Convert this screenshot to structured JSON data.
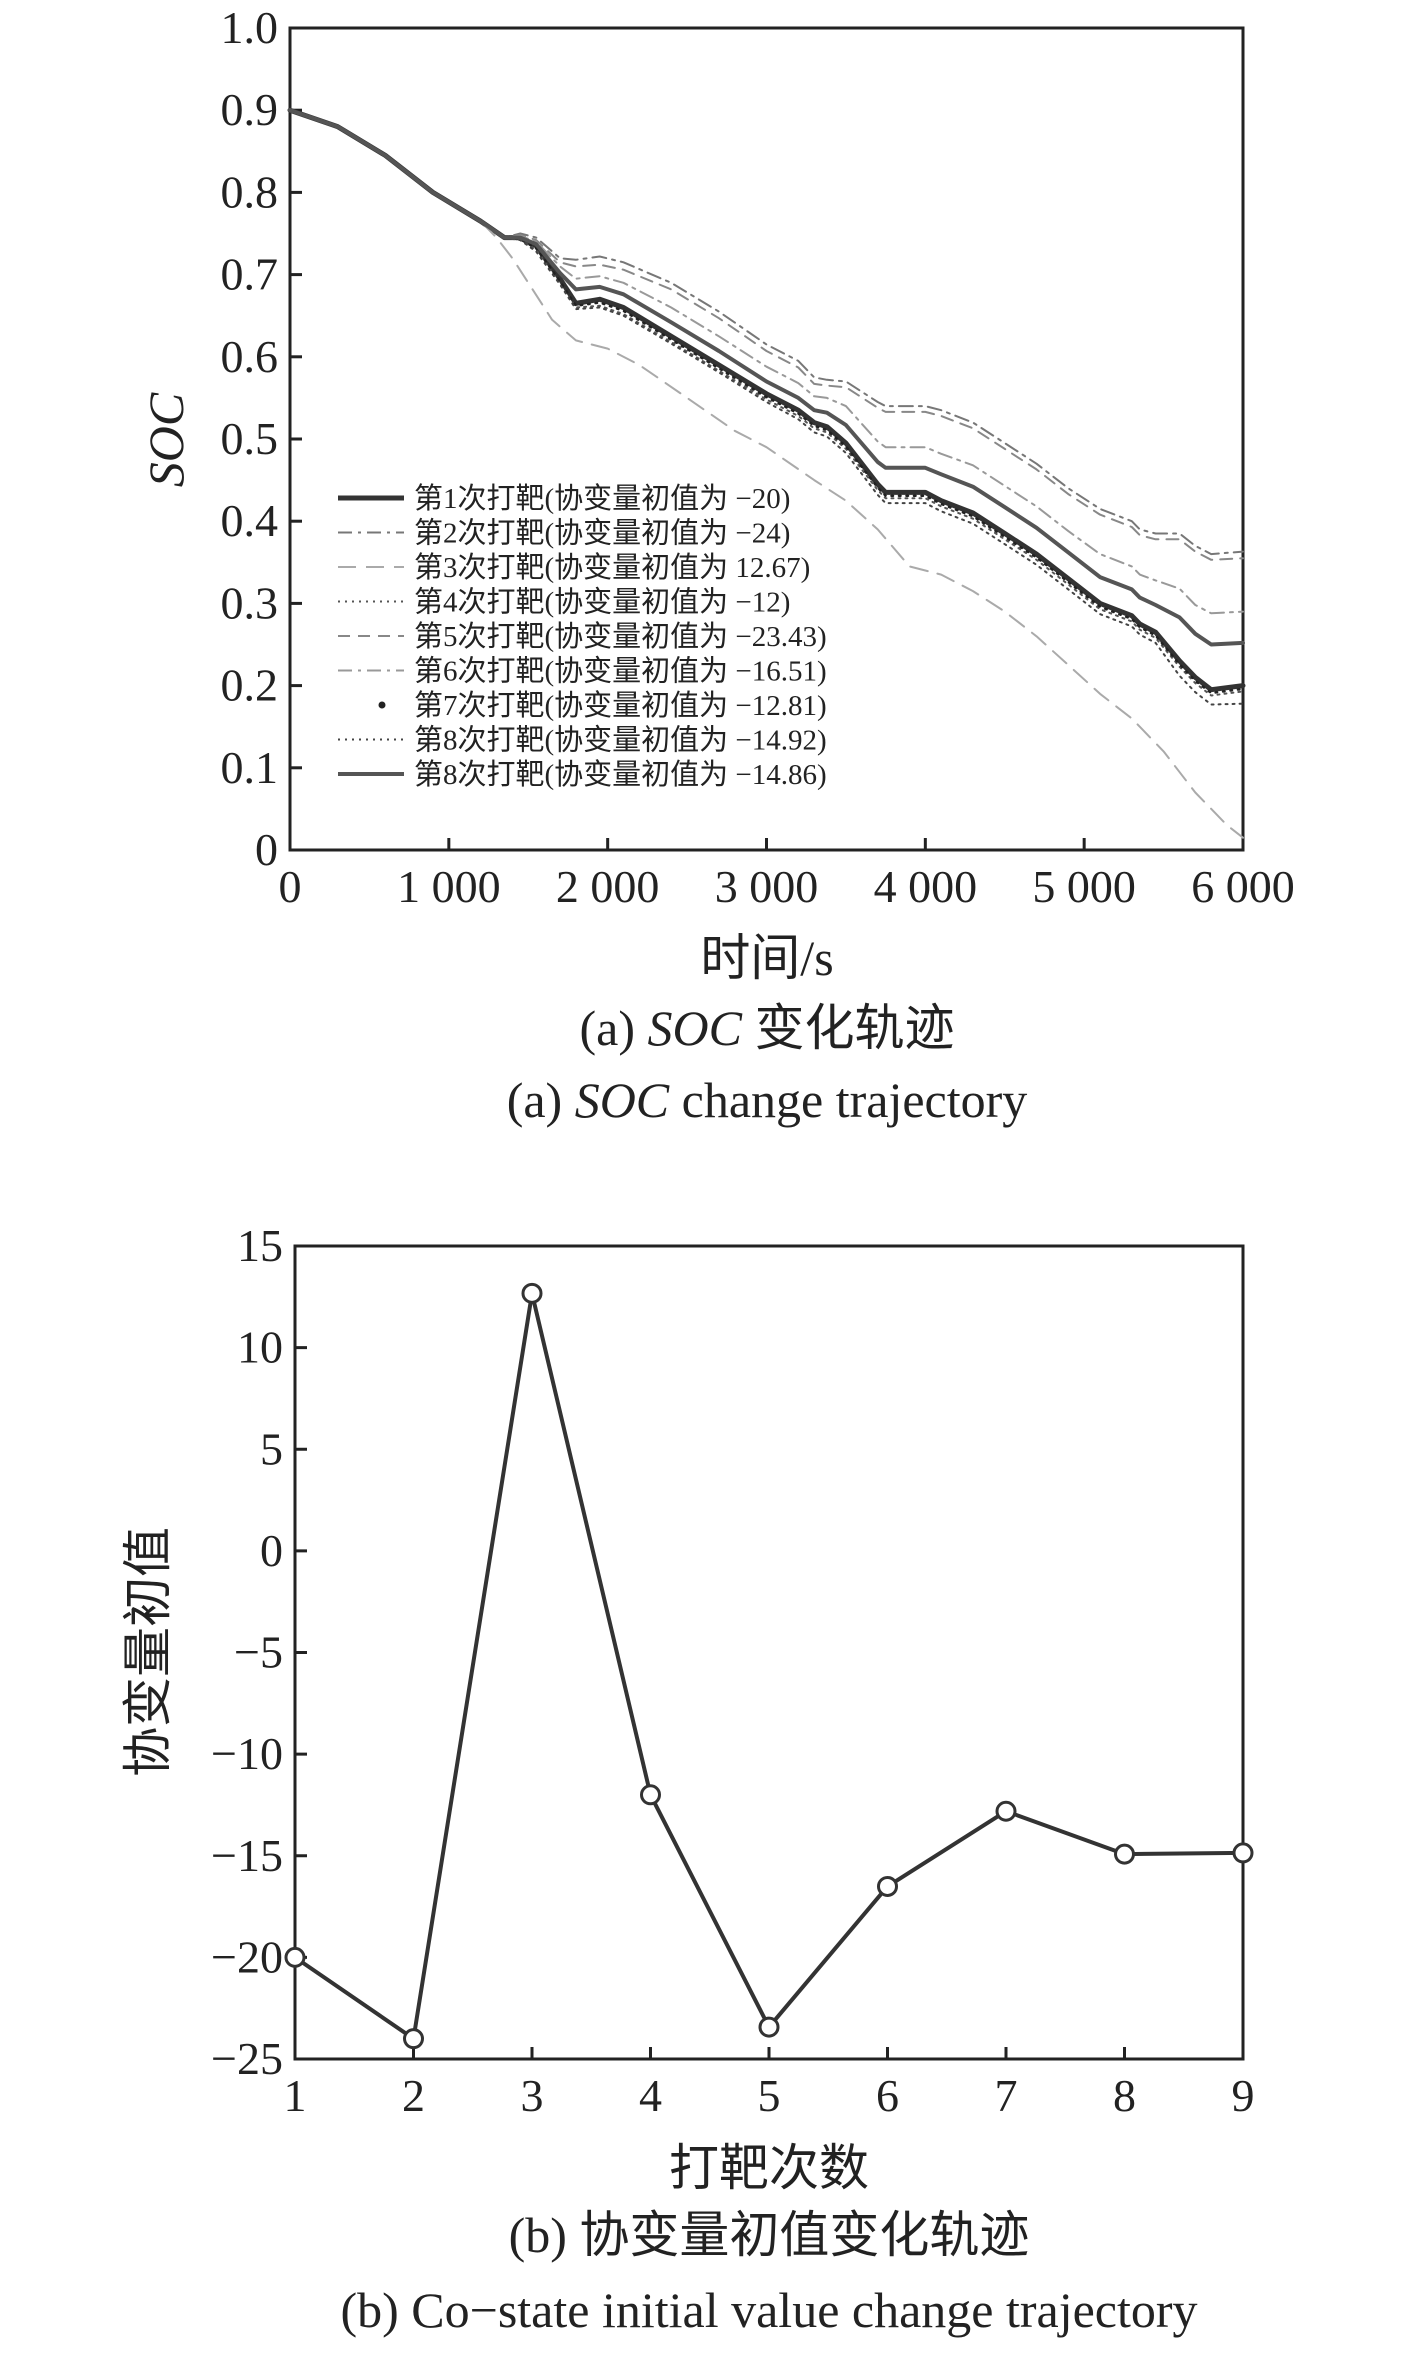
{
  "chart_data": [
    {
      "type": "line",
      "title": "",
      "xlabel": "时间/s",
      "ylabel": "SOC",
      "xlim": [
        0,
        6000
      ],
      "ylim": [
        0,
        1.0
      ],
      "x_tick_labels": [
        "0",
        "1 000",
        "2 000",
        "3 000",
        "4 000",
        "5 000",
        "6 000"
      ],
      "y_tick_labels": [
        "0",
        "0.1",
        "0.2",
        "0.3",
        "0.4",
        "0.5",
        "0.6",
        "0.7",
        "0.8",
        "0.9",
        "1.0"
      ],
      "caption_cn": {
        "prefix": "(a) ",
        "italic": "SOC",
        "suffix": " 变化轨迹"
      },
      "caption_en": {
        "prefix": "(a) ",
        "italic": "SOC",
        "suffix": " change trajectory"
      },
      "series": [
        {
          "name": "第1次打靶(协变量初值为 −20)",
          "style": "solid-thick",
          "color": "#333333",
          "x": [
            0,
            300,
            600,
            900,
            1200,
            1350,
            1450,
            1550,
            1700,
            1800,
            1950,
            2100,
            2400,
            2700,
            3000,
            3200,
            3300,
            3380,
            3500,
            3700,
            3750,
            3900,
            4000,
            4100,
            4300,
            4500,
            4700,
            4900,
            5100,
            5300,
            5350,
            5450,
            5600,
            5700,
            5800,
            6000
          ],
          "y": [
            0.9,
            0.88,
            0.845,
            0.8,
            0.765,
            0.745,
            0.745,
            0.735,
            0.695,
            0.665,
            0.67,
            0.66,
            0.625,
            0.59,
            0.555,
            0.535,
            0.52,
            0.515,
            0.495,
            0.445,
            0.435,
            0.435,
            0.435,
            0.425,
            0.41,
            0.385,
            0.36,
            0.33,
            0.3,
            0.285,
            0.275,
            0.265,
            0.23,
            0.21,
            0.195,
            0.2
          ]
        },
        {
          "name": "第2次打靶(协变量初值为 −24)",
          "style": "dashdot",
          "color": "#777777",
          "x": [
            0,
            300,
            600,
            900,
            1200,
            1350,
            1450,
            1550,
            1700,
            1800,
            1950,
            2100,
            2400,
            2700,
            3000,
            3200,
            3300,
            3380,
            3500,
            3700,
            3750,
            3900,
            4000,
            4100,
            4300,
            4500,
            4700,
            4900,
            5100,
            5300,
            5350,
            5450,
            5600,
            5700,
            5800,
            6000
          ],
          "y": [
            0.9,
            0.88,
            0.845,
            0.8,
            0.765,
            0.745,
            0.75,
            0.745,
            0.72,
            0.718,
            0.722,
            0.715,
            0.69,
            0.655,
            0.615,
            0.595,
            0.575,
            0.572,
            0.57,
            0.545,
            0.54,
            0.54,
            0.54,
            0.535,
            0.52,
            0.495,
            0.47,
            0.44,
            0.415,
            0.4,
            0.39,
            0.385,
            0.385,
            0.37,
            0.36,
            0.363
          ]
        },
        {
          "name": "第3次打靶(协变量初值为 12.67)",
          "style": "dash-long-light",
          "color": "#aaaaaa",
          "x": [
            0,
            300,
            600,
            900,
            1200,
            1300,
            1400,
            1500,
            1650,
            1800,
            2000,
            2200,
            2500,
            2800,
            3000,
            3300,
            3500,
            3700,
            3900,
            4000,
            4100,
            4300,
            4500,
            4700,
            4900,
            5100,
            5300,
            5500,
            5700,
            5900,
            6000
          ],
          "y": [
            0.9,
            0.88,
            0.845,
            0.8,
            0.765,
            0.745,
            0.72,
            0.69,
            0.645,
            0.62,
            0.61,
            0.59,
            0.55,
            0.51,
            0.49,
            0.45,
            0.425,
            0.39,
            0.345,
            0.34,
            0.335,
            0.315,
            0.29,
            0.26,
            0.225,
            0.19,
            0.16,
            0.12,
            0.07,
            0.03,
            0.015
          ]
        },
        {
          "name": "第4次打靶(协变量初值为 −12)",
          "style": "dotted",
          "color": "#555555",
          "x": [
            0,
            300,
            600,
            900,
            1200,
            1350,
            1450,
            1550,
            1700,
            1800,
            1950,
            2100,
            2400,
            2700,
            3000,
            3200,
            3300,
            3380,
            3500,
            3700,
            3750,
            3900,
            4000,
            4100,
            4300,
            4500,
            4700,
            4900,
            5100,
            5300,
            5350,
            5450,
            5600,
            5700,
            5800,
            6000
          ],
          "y": [
            0.9,
            0.88,
            0.845,
            0.8,
            0.765,
            0.745,
            0.742,
            0.73,
            0.69,
            0.66,
            0.662,
            0.652,
            0.618,
            0.583,
            0.548,
            0.528,
            0.513,
            0.508,
            0.488,
            0.438,
            0.428,
            0.428,
            0.428,
            0.418,
            0.403,
            0.378,
            0.353,
            0.323,
            0.293,
            0.278,
            0.268,
            0.258,
            0.223,
            0.203,
            0.188,
            0.193
          ]
        },
        {
          "name": "第5次打靶(协变量初值为 −23.43)",
          "style": "dashed",
          "color": "#888888",
          "x": [
            0,
            300,
            600,
            900,
            1200,
            1350,
            1450,
            1550,
            1700,
            1800,
            1950,
            2100,
            2400,
            2700,
            3000,
            3200,
            3300,
            3380,
            3500,
            3700,
            3750,
            3900,
            4000,
            4100,
            4300,
            4500,
            4700,
            4900,
            5100,
            5300,
            5350,
            5450,
            5600,
            5700,
            5800,
            6000
          ],
          "y": [
            0.9,
            0.88,
            0.845,
            0.8,
            0.765,
            0.745,
            0.748,
            0.742,
            0.715,
            0.71,
            0.712,
            0.706,
            0.682,
            0.647,
            0.607,
            0.587,
            0.567,
            0.565,
            0.563,
            0.538,
            0.533,
            0.533,
            0.533,
            0.528,
            0.513,
            0.488,
            0.463,
            0.433,
            0.408,
            0.393,
            0.383,
            0.378,
            0.378,
            0.363,
            0.353,
            0.355
          ]
        },
        {
          "name": "第6次打靶(协变量初值为 −16.51)",
          "style": "dashdot",
          "color": "#999999",
          "x": [
            0,
            300,
            600,
            900,
            1200,
            1350,
            1450,
            1550,
            1700,
            1800,
            1950,
            2100,
            2400,
            2700,
            3000,
            3200,
            3300,
            3380,
            3500,
            3700,
            3750,
            3900,
            4000,
            4100,
            4300,
            4500,
            4700,
            4900,
            5100,
            5300,
            5350,
            5450,
            5600,
            5700,
            5800,
            6000
          ],
          "y": [
            0.9,
            0.88,
            0.845,
            0.8,
            0.765,
            0.745,
            0.747,
            0.74,
            0.71,
            0.695,
            0.698,
            0.69,
            0.66,
            0.625,
            0.588,
            0.568,
            0.552,
            0.55,
            0.54,
            0.497,
            0.49,
            0.49,
            0.49,
            0.482,
            0.468,
            0.443,
            0.418,
            0.388,
            0.36,
            0.345,
            0.335,
            0.328,
            0.318,
            0.298,
            0.288,
            0.29
          ]
        },
        {
          "name": "第7次打靶(协变量初值为 −12.81)",
          "style": "dot-marker",
          "color": "#222222",
          "x": [
            0,
            300,
            600,
            900,
            1200,
            1350,
            1450,
            1550,
            1700,
            1800,
            1950,
            2100,
            2400,
            2700,
            3000,
            3200,
            3300,
            3380,
            3500,
            3700,
            3750,
            3900,
            4000,
            4100,
            4300,
            4500,
            4700,
            4900,
            5100,
            5300,
            5350,
            5450,
            5600,
            5700,
            5800,
            6000
          ],
          "y": [
            0.9,
            0.88,
            0.845,
            0.8,
            0.765,
            0.745,
            0.743,
            0.732,
            0.692,
            0.662,
            0.666,
            0.656,
            0.621,
            0.586,
            0.551,
            0.531,
            0.516,
            0.511,
            0.491,
            0.441,
            0.431,
            0.431,
            0.431,
            0.421,
            0.406,
            0.381,
            0.356,
            0.326,
            0.296,
            0.281,
            0.271,
            0.261,
            0.226,
            0.206,
            0.191,
            0.196
          ]
        },
        {
          "name": "第8次打靶(协变量初值为 −14.92)",
          "style": "dotted",
          "color": "#444444",
          "x": [
            0,
            300,
            600,
            900,
            1200,
            1350,
            1450,
            1550,
            1700,
            1800,
            1950,
            2100,
            2400,
            2700,
            3000,
            3200,
            3300,
            3380,
            3500,
            3700,
            3750,
            3900,
            4000,
            4100,
            4300,
            4500,
            4700,
            4900,
            5100,
            5300,
            5350,
            5450,
            5600,
            5700,
            5800,
            6000
          ],
          "y": [
            0.9,
            0.88,
            0.845,
            0.8,
            0.765,
            0.745,
            0.742,
            0.728,
            0.688,
            0.658,
            0.66,
            0.65,
            0.616,
            0.581,
            0.545,
            0.524,
            0.508,
            0.503,
            0.483,
            0.432,
            0.422,
            0.422,
            0.422,
            0.412,
            0.397,
            0.372,
            0.347,
            0.317,
            0.287,
            0.272,
            0.262,
            0.252,
            0.212,
            0.192,
            0.177,
            0.178
          ]
        },
        {
          "name": "第8次打靶(协变量初值为 −14.86)",
          "style": "solid",
          "color": "#555555",
          "x": [
            0,
            300,
            600,
            900,
            1200,
            1350,
            1450,
            1550,
            1700,
            1800,
            1950,
            2100,
            2400,
            2700,
            3000,
            3200,
            3300,
            3380,
            3500,
            3700,
            3750,
            3900,
            4000,
            4100,
            4300,
            4500,
            4700,
            4900,
            5100,
            5300,
            5350,
            5450,
            5600,
            5700,
            5800,
            6000
          ],
          "y": [
            0.9,
            0.88,
            0.845,
            0.8,
            0.765,
            0.745,
            0.745,
            0.737,
            0.702,
            0.682,
            0.685,
            0.676,
            0.642,
            0.607,
            0.57,
            0.55,
            0.535,
            0.532,
            0.517,
            0.472,
            0.465,
            0.465,
            0.465,
            0.457,
            0.442,
            0.417,
            0.392,
            0.362,
            0.332,
            0.317,
            0.307,
            0.298,
            0.283,
            0.263,
            0.25,
            0.252
          ]
        }
      ]
    },
    {
      "type": "line",
      "title": "",
      "xlabel": "打靶次数",
      "ylabel": "协变量初值",
      "xlim": [
        1,
        9
      ],
      "ylim": [
        -25,
        15
      ],
      "x_tick_labels": [
        "1",
        "2",
        "3",
        "4",
        "5",
        "6",
        "7",
        "8",
        "9"
      ],
      "y_tick_labels": [
        "−25",
        "−20",
        "−15",
        "−10",
        "−5",
        "0",
        "5",
        "10",
        "15"
      ],
      "caption_cn": {
        "prefix": "(b) ",
        "italic": "",
        "suffix": "协变量初值变化轨迹"
      },
      "caption_en": {
        "prefix": "(b) ",
        "italic": "",
        "suffix": "Co−state initial value change trajectory"
      },
      "series": [
        {
          "name": "协变量初值",
          "marker": "circle",
          "color": "#333333",
          "x": [
            1,
            2,
            3,
            4,
            5,
            6,
            7,
            8,
            9
          ],
          "y": [
            -20,
            -24,
            12.67,
            -12,
            -23.43,
            -16.51,
            -12.81,
            -14.92,
            -14.86
          ]
        }
      ]
    }
  ]
}
